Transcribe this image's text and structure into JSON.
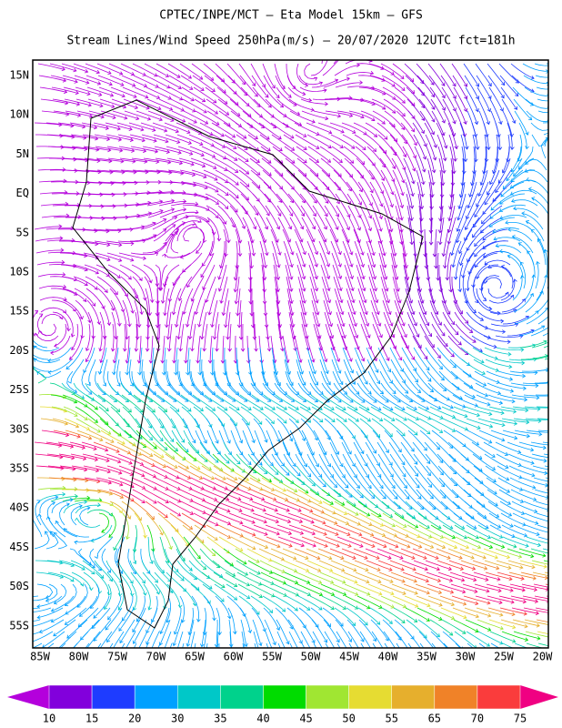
{
  "header": {
    "title": "CPTEC/INPE/MCT –  Eta Model 15km – GFS",
    "subtitle": "Stream Lines/Wind Speed 250hPa(m/s) – 20/07/2020 12UTC fct=181h"
  },
  "map": {
    "lat_labels": [
      "15N",
      "10N",
      "5N",
      "EQ",
      "5S",
      "10S",
      "15S",
      "20S",
      "25S",
      "30S",
      "35S",
      "40S",
      "45S",
      "50S",
      "55S"
    ],
    "lon_labels": [
      "85W",
      "80W",
      "75W",
      "70W",
      "65W",
      "60W",
      "55W",
      "50W",
      "45W",
      "40W",
      "35W",
      "30W",
      "25W",
      "20W"
    ]
  },
  "colorbar": {
    "labels": [
      10,
      15,
      20,
      30,
      35,
      40,
      45,
      50,
      55,
      65,
      70,
      75
    ],
    "colors": [
      "#b400dc",
      "#8200dc",
      "#1e3cff",
      "#00a0ff",
      "#00c8c8",
      "#00d28c",
      "#00dc00",
      "#a0e632",
      "#e6dc32",
      "#e6af2d",
      "#f08228",
      "#fa3c3c",
      "#f00082"
    ]
  }
}
